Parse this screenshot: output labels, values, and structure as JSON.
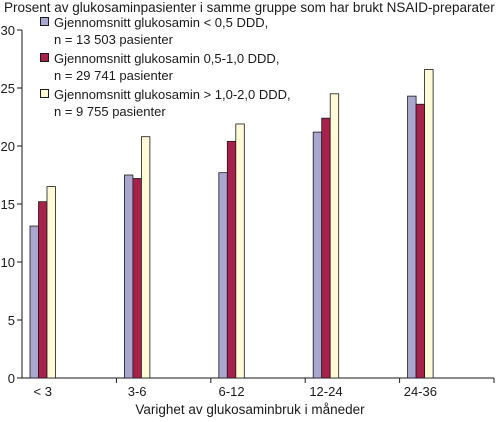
{
  "chart_data": {
    "type": "bar",
    "ylabel": "Prosent av glukosaminpasienter i samme gruppe som har brukt NSAID-preparater",
    "xlabel": "Varighet av glukosaminbruk i måneder",
    "categories": [
      "< 3",
      "3-6",
      "6-12",
      "12-24",
      "24-36"
    ],
    "ylim": [
      0,
      30
    ],
    "yticks": [
      0,
      5,
      10,
      15,
      20,
      25,
      30
    ],
    "grid": false,
    "legend_position": "top-left",
    "series": [
      {
        "name": "Gjennomsnitt glukosamin < 0,5 DDD,",
        "name_line2": "n = 13 503 pasienter",
        "color": "#a9a7cf",
        "values": [
          13.1,
          17.5,
          17.7,
          21.2,
          24.3
        ]
      },
      {
        "name": "Gjennomsnitt glukosamin 0,5-1,0 DDD,",
        "name_line2": "n = 29 741 pasienter",
        "color": "#a8214b",
        "values": [
          15.2,
          17.2,
          20.4,
          22.4,
          23.6
        ]
      },
      {
        "name": "Gjennomsnitt glukosamin > 1,0-2,0 DDD,",
        "name_line2": "n = 9 755 pasienter",
        "color": "#fffbd6",
        "values": [
          16.5,
          20.8,
          21.9,
          24.5,
          26.6
        ]
      }
    ]
  }
}
